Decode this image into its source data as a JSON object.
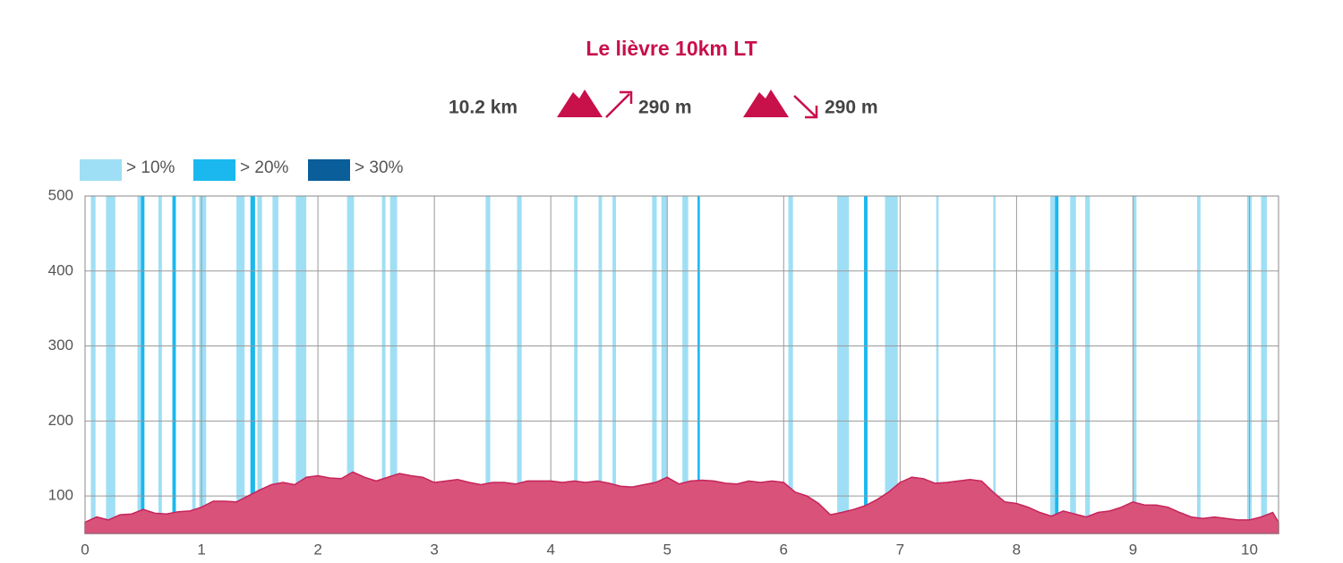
{
  "chart_data": {
    "type": "area",
    "title": "Le lièvre 10km LT",
    "distance": "10.2 km",
    "ascent": "290 m",
    "descent": "290 m",
    "area_color": "#d9527a",
    "line_color": "#c6245a",
    "xlim": [
      0,
      10.25
    ],
    "ylim": [
      50,
      500
    ],
    "xticks": [
      0,
      1,
      2,
      3,
      4,
      5,
      6,
      7,
      8,
      9,
      10
    ],
    "yticks": [
      100,
      200,
      300,
      400,
      500
    ],
    "grid": true,
    "x": [
      0,
      0.1,
      0.2,
      0.3,
      0.4,
      0.5,
      0.6,
      0.7,
      0.8,
      0.9,
      1.0,
      1.1,
      1.2,
      1.3,
      1.4,
      1.5,
      1.6,
      1.7,
      1.8,
      1.9,
      2.0,
      2.1,
      2.2,
      2.3,
      2.4,
      2.5,
      2.6,
      2.7,
      2.8,
      2.9,
      3.0,
      3.1,
      3.2,
      3.3,
      3.4,
      3.5,
      3.6,
      3.7,
      3.8,
      3.9,
      4.0,
      4.1,
      4.2,
      4.3,
      4.4,
      4.5,
      4.6,
      4.7,
      4.8,
      4.9,
      5.0,
      5.1,
      5.2,
      5.3,
      5.4,
      5.5,
      5.6,
      5.7,
      5.8,
      5.9,
      6.0,
      6.1,
      6.2,
      6.3,
      6.4,
      6.5,
      6.6,
      6.7,
      6.8,
      6.9,
      7.0,
      7.1,
      7.2,
      7.3,
      7.4,
      7.5,
      7.6,
      7.7,
      7.8,
      7.9,
      8.0,
      8.1,
      8.2,
      8.3,
      8.4,
      8.5,
      8.6,
      8.7,
      8.8,
      8.9,
      9.0,
      9.1,
      9.2,
      9.3,
      9.4,
      9.5,
      9.6,
      9.7,
      9.8,
      9.9,
      10.0,
      10.1,
      10.2,
      10.25
    ],
    "values": [
      65,
      72,
      68,
      75,
      76,
      82,
      77,
      76,
      79,
      80,
      85,
      93,
      93,
      92,
      100,
      108,
      115,
      118,
      115,
      125,
      127,
      124,
      123,
      132,
      125,
      120,
      125,
      130,
      127,
      125,
      118,
      120,
      122,
      118,
      115,
      118,
      118,
      116,
      120,
      120,
      120,
      118,
      120,
      118,
      120,
      117,
      113,
      112,
      115,
      118,
      125,
      116,
      120,
      121,
      120,
      117,
      116,
      120,
      118,
      120,
      118,
      105,
      100,
      90,
      75,
      78,
      82,
      87,
      95,
      105,
      118,
      125,
      123,
      117,
      118,
      120,
      122,
      120,
      105,
      92,
      90,
      85,
      78,
      73,
      80,
      76,
      72,
      78,
      80,
      85,
      92,
      88,
      88,
      85,
      78,
      72,
      70,
      72,
      70,
      68,
      68,
      72,
      78,
      65
    ],
    "slope_bands": [
      {
        "name": "> 10%",
        "color": "#9fdff5",
        "ranges": [
          [
            0.05,
            0.09
          ],
          [
            0.18,
            0.26
          ],
          [
            0.45,
            0.48
          ],
          [
            0.63,
            0.66
          ],
          [
            0.92,
            0.95
          ],
          [
            0.98,
            1.04
          ],
          [
            1.3,
            1.37
          ],
          [
            1.48,
            1.52
          ],
          [
            1.61,
            1.66
          ],
          [
            1.81,
            1.9
          ],
          [
            2.25,
            2.31
          ],
          [
            2.55,
            2.58
          ],
          [
            2.62,
            2.68
          ],
          [
            3.44,
            3.48
          ],
          [
            3.71,
            3.75
          ],
          [
            4.2,
            4.23
          ],
          [
            4.41,
            4.44
          ],
          [
            4.53,
            4.56
          ],
          [
            4.87,
            4.91
          ],
          [
            4.95,
            5.0
          ],
          [
            5.13,
            5.18
          ],
          [
            6.04,
            6.08
          ],
          [
            6.46,
            6.56
          ],
          [
            6.87,
            6.98
          ],
          [
            7.31,
            7.33
          ],
          [
            7.8,
            7.82
          ],
          [
            8.29,
            8.33
          ],
          [
            8.46,
            8.51
          ],
          [
            8.59,
            8.63
          ],
          [
            9.0,
            9.03
          ],
          [
            9.55,
            9.58
          ],
          [
            9.98,
            10.02
          ],
          [
            10.1,
            10.15
          ]
        ]
      },
      {
        "name": "> 20%",
        "color": "#1ab8ef",
        "ranges": [
          [
            0.48,
            0.51
          ],
          [
            0.75,
            0.78
          ],
          [
            1.42,
            1.46
          ],
          [
            5.26,
            5.28
          ],
          [
            6.69,
            6.72
          ],
          [
            8.33,
            8.36
          ]
        ]
      },
      {
        "name": "> 30%",
        "color": "#0a5e9a",
        "ranges": []
      }
    ]
  }
}
